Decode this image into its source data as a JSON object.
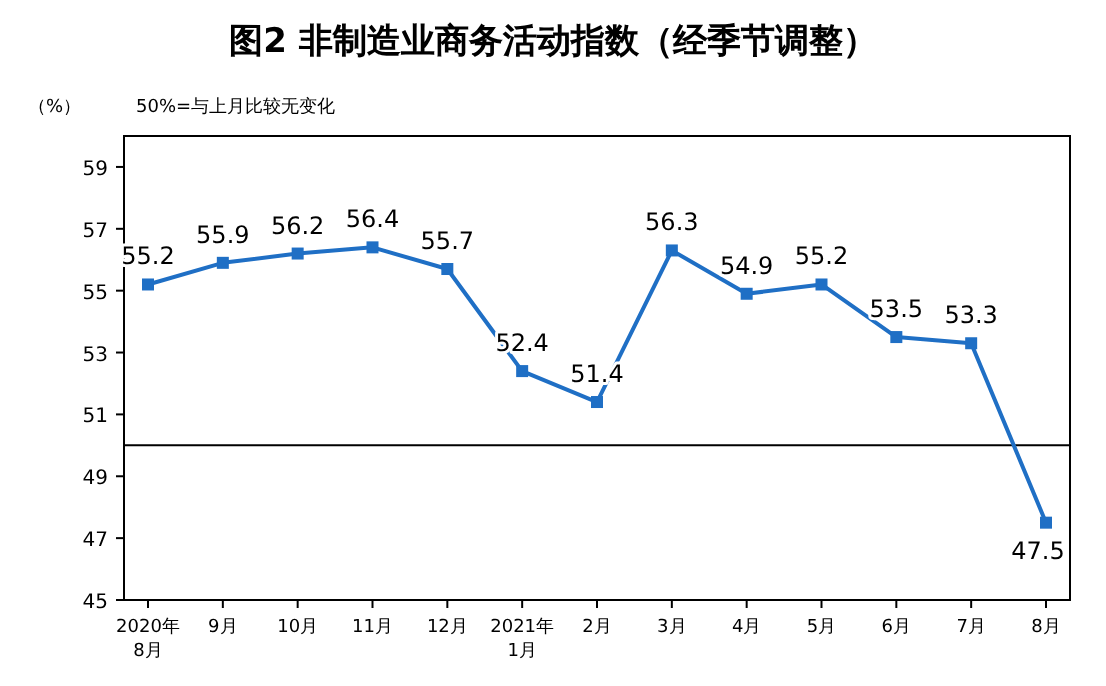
{
  "chart_data": {
    "type": "line",
    "title": "图2  非制造业商务活动指数（经季节调整）",
    "ylabel": "（%）",
    "annotations": [
      "50%=与上月比较无变化"
    ],
    "categories": [
      "2020年\n8月",
      "9月",
      "10月",
      "11月",
      "12月",
      "2021年\n1月",
      "2月",
      "3月",
      "4月",
      "5月",
      "6月",
      "7月",
      "8月"
    ],
    "series": [
      {
        "color": "#1f6fc5",
        "values": [
          55.2,
          55.9,
          56.2,
          56.4,
          55.7,
          52.4,
          51.4,
          56.3,
          54.9,
          55.2,
          53.5,
          53.3,
          47.5
        ]
      }
    ],
    "ylim": [
      45,
      60
    ],
    "yticks": [
      45,
      47,
      49,
      51,
      53,
      55,
      57,
      59
    ],
    "ref_lines": [
      {
        "axis": "y",
        "value": 50,
        "color": "#000000"
      }
    ],
    "data_labels": true,
    "marker": "square",
    "line_style": "solid",
    "grid": false
  }
}
